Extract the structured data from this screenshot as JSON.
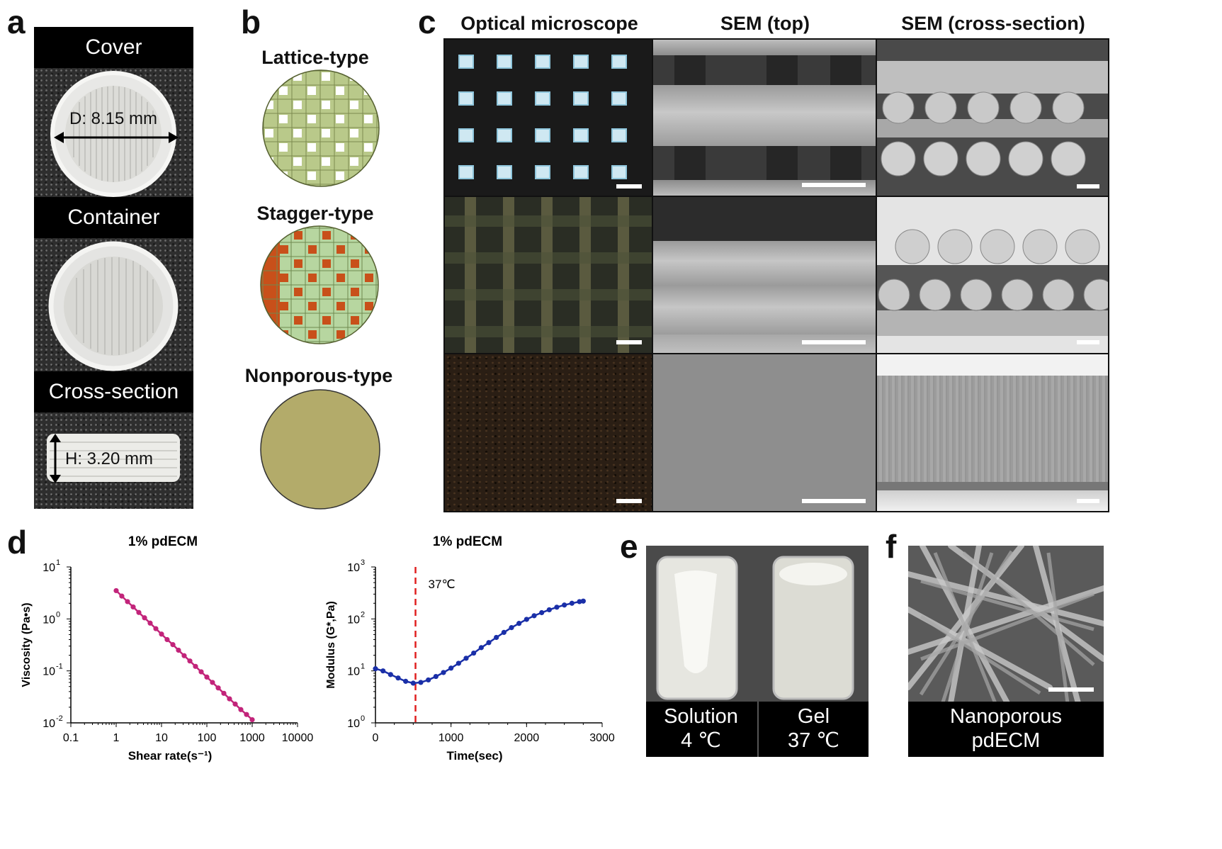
{
  "panels": {
    "a": "a",
    "b": "b",
    "c": "c",
    "d": "d",
    "e": "e",
    "f": "f"
  },
  "panel_a": {
    "cover_label": "Cover",
    "container_label": "Container",
    "cross_label": "Cross-section",
    "diameter": "D: 8.15 mm",
    "height": "H: 3.20 mm"
  },
  "panel_b": {
    "lattice": "Lattice-type",
    "stagger": "Stagger-type",
    "nonporous": "Nonporous-type",
    "colors": {
      "lattice_fill": "#b9c98a",
      "stagger_orange": "#c8501a",
      "nonporous": "#b3ab6a"
    }
  },
  "panel_c": {
    "col_optical": "Optical microscope",
    "col_sem_top": "SEM (top)",
    "col_sem_cross": "SEM (cross-section)"
  },
  "panel_e": {
    "left_line1": "Solution",
    "left_line2": "4 ℃",
    "right_line1": "Gel",
    "right_line2": "37 ℃"
  },
  "panel_f": {
    "line1": "Nanoporous",
    "line2": "pdECM"
  },
  "chart_data": [
    {
      "type": "line",
      "title": "1% pdECM",
      "xlabel": "Shear rate(s⁻¹)",
      "ylabel": "Viscosity (Pa•s)",
      "xscale": "log",
      "yscale": "log",
      "xlim": [
        0.1,
        10000
      ],
      "ylim": [
        0.01,
        10
      ],
      "x_ticks": [
        "0.1",
        "1",
        "10",
        "100",
        "1000",
        "10000"
      ],
      "y_ticks": [
        {
          "base": "10",
          "exp": "1"
        },
        {
          "base": "10",
          "exp": "0"
        },
        {
          "base": "10",
          "exp": "-1"
        },
        {
          "base": "10",
          "exp": "-2"
        }
      ],
      "color": "#c2247a",
      "series": [
        {
          "x": [
            1,
            1.33,
            1.78,
            2.37,
            3.16,
            4.22,
            5.62,
            7.5,
            10,
            13.3,
            17.8,
            23.7,
            31.6,
            42.2,
            56.2,
            75,
            100,
            133,
            178,
            237,
            316,
            422,
            562,
            750,
            1000
          ],
          "y": [
            3.5,
            2.75,
            2.15,
            1.7,
            1.33,
            1.05,
            0.83,
            0.65,
            0.51,
            0.4,
            0.32,
            0.25,
            0.196,
            0.155,
            0.122,
            0.096,
            0.076,
            0.06,
            0.047,
            0.037,
            0.029,
            0.023,
            0.018,
            0.0145,
            0.0115
          ]
        }
      ]
    },
    {
      "type": "line",
      "title": "1% pdECM",
      "xlabel": "Time(sec)",
      "ylabel": "Modulus (G*,Pa)",
      "xscale": "linear",
      "yscale": "log",
      "xlim": [
        0,
        3000
      ],
      "ylim": [
        1,
        1000
      ],
      "x_ticks": [
        "0",
        "1000",
        "2000",
        "3000"
      ],
      "y_ticks": [
        {
          "base": "10",
          "exp": "3"
        },
        {
          "base": "10",
          "exp": "2"
        },
        {
          "base": "10",
          "exp": "1"
        },
        {
          "base": "10",
          "exp": "0"
        }
      ],
      "color": "#1a2fa8",
      "annotation": {
        "x": 530,
        "text": "37℃",
        "color": "#e02020"
      },
      "series": [
        {
          "x": [
            0,
            100,
            200,
            300,
            400,
            500,
            600,
            700,
            800,
            900,
            1000,
            1100,
            1200,
            1300,
            1400,
            1500,
            1600,
            1700,
            1800,
            1900,
            2000,
            2100,
            2200,
            2300,
            2400,
            2500,
            2600,
            2700,
            2750
          ],
          "y": [
            11,
            10,
            8.5,
            7.3,
            6.3,
            5.8,
            6.0,
            6.7,
            7.8,
            9.3,
            11.3,
            14,
            17.5,
            22,
            28,
            35,
            44,
            55,
            68,
            82,
            98,
            115,
            132,
            150,
            168,
            185,
            200,
            215,
            220
          ]
        }
      ]
    }
  ]
}
